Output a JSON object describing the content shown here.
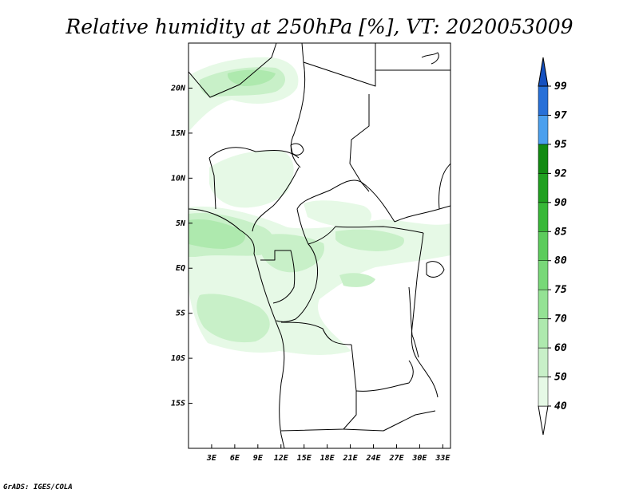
{
  "title": "Relative humidity at 250hPa [%], VT: 2020053009",
  "credit": "GrADS: IGES/COLA",
  "map": {
    "lon_range": [
      0,
      34
    ],
    "lat_range": [
      -20,
      25
    ],
    "lon_ticks": [
      {
        "value": 3,
        "label": "3E"
      },
      {
        "value": 6,
        "label": "6E"
      },
      {
        "value": 9,
        "label": "9E"
      },
      {
        "value": 12,
        "label": "12E"
      },
      {
        "value": 15,
        "label": "15E"
      },
      {
        "value": 18,
        "label": "18E"
      },
      {
        "value": 21,
        "label": "21E"
      },
      {
        "value": 24,
        "label": "24E"
      },
      {
        "value": 27,
        "label": "27E"
      },
      {
        "value": 30,
        "label": "30E"
      },
      {
        "value": 33,
        "label": "33E"
      }
    ],
    "lat_ticks": [
      {
        "value": 20,
        "label": "20N"
      },
      {
        "value": 15,
        "label": "15N"
      },
      {
        "value": 10,
        "label": "10N"
      },
      {
        "value": 5,
        "label": "5N"
      },
      {
        "value": 0,
        "label": "EQ"
      },
      {
        "value": -5,
        "label": "5S"
      },
      {
        "value": -10,
        "label": "10S"
      },
      {
        "value": -15,
        "label": "15S"
      }
    ]
  },
  "colorbar": {
    "levels": [
      "40",
      "50",
      "60",
      "70",
      "75",
      "80",
      "85",
      "90",
      "92",
      "95",
      "97",
      "99"
    ],
    "colors": [
      "#ffffff",
      "#e6f9e6",
      "#c8f0c8",
      "#aee9ae",
      "#94e294",
      "#78d878",
      "#5ccc5c",
      "#38b838",
      "#20a020",
      "#128a12",
      "#4ca0ee",
      "#2870d8",
      "#1450c0"
    ]
  }
}
